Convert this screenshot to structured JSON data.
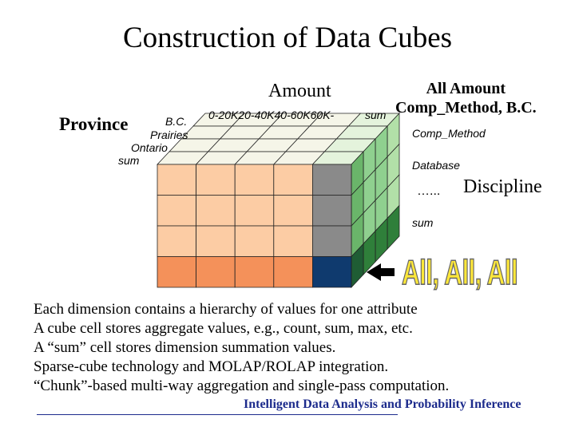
{
  "title": "Construction of Data Cubes",
  "cube": {
    "amount_label": "Amount",
    "province_label": "Province",
    "province_values": [
      "B.C.",
      "Prairies",
      "Ontario",
      "sum"
    ],
    "amount_values": "0-20K20-40K40-60K60K-",
    "amount_sum": "sum",
    "all_amount_line1": "All Amount",
    "all_amount_line2": "Comp_Method, B.C.",
    "discipline_values": [
      "Comp_Method",
      "Database",
      "…..."
    ],
    "discipline_label": "Discipline",
    "discipline_sum": "sum",
    "all_all_all": "All, All, All",
    "colors": {
      "front_face": "#fccca4",
      "sum_row": "#f4915a",
      "sum_column": "#8a8a8a",
      "all_corner": "#0f3a6e",
      "side_face": "#8fd08f",
      "side_dark": "#2f7f3a",
      "top_face": "#f5f5e8",
      "arrow": "#000000"
    }
  },
  "bullets": [
    "Each dimension contains a hierarchy of  values for one attribute",
    "A cube cell stores aggregate values, e.g., count,  sum, max, etc.",
    "A “sum” cell stores dimension summation values.",
    "Sparse-cube technology and MOLAP/ROLAP integration.",
    "“Chunk”-based multi-way aggregation and single-pass computation."
  ],
  "footer": "Intelligent Data Analysis and Probability Inference"
}
